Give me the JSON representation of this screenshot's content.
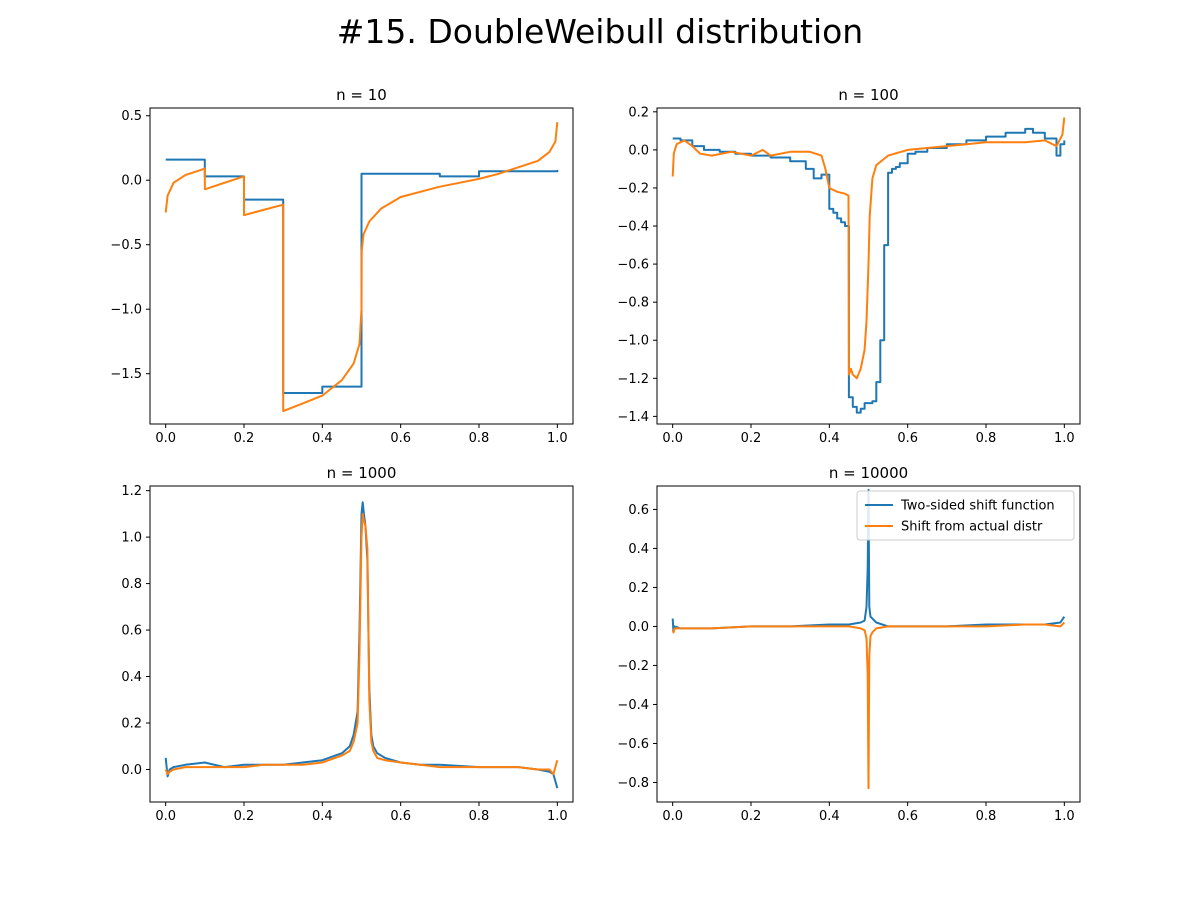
{
  "figure": {
    "title": "#15. DoubleWeibull distribution"
  },
  "colors": {
    "two_sided": "#1f77b4",
    "actual": "#ff7f0e",
    "axes": "#000000",
    "background": "#ffffff"
  },
  "legend": {
    "location": "upper right of fourth panel",
    "entries": [
      "Two-sided shift function",
      "Shift from actual distr"
    ]
  },
  "chart_data": [
    {
      "type": "line",
      "title": "n = 10",
      "xlim": [
        -0.04,
        1.04
      ],
      "ylim": [
        -1.89,
        0.56
      ],
      "xticks": [
        0.0,
        0.2,
        0.4,
        0.6,
        0.8,
        1.0
      ],
      "xtick_labels": [
        "0.0",
        "0.2",
        "0.4",
        "0.6",
        "0.8",
        "1.0"
      ],
      "yticks": [
        0.5,
        0.0,
        -0.5,
        -1.0,
        -1.5
      ],
      "ytick_labels": [
        "0.5",
        "0.0",
        "−0.5",
        "−1.0",
        "−1.5"
      ],
      "series": [
        {
          "name": "Two-sided shift function",
          "step": true,
          "x": [
            0.0,
            0.1,
            0.2,
            0.3,
            0.4,
            0.5,
            0.7,
            0.8,
            1.0
          ],
          "y": [
            0.16,
            0.03,
            -0.15,
            -1.65,
            -1.6,
            0.05,
            0.03,
            0.07,
            0.08
          ]
        },
        {
          "name": "Shift from actual distr",
          "step": false,
          "x": [
            0.0,
            0.005,
            0.02,
            0.05,
            0.09,
            0.1,
            0.1001,
            0.15,
            0.2,
            0.2001,
            0.25,
            0.3,
            0.3001,
            0.35,
            0.4,
            0.45,
            0.48,
            0.495,
            0.5,
            0.5005,
            0.505,
            0.52,
            0.55,
            0.6,
            0.65,
            0.7,
            0.75,
            0.8,
            0.85,
            0.9,
            0.95,
            0.98,
            0.995,
            1.0
          ],
          "y": [
            -0.25,
            -0.12,
            -0.02,
            0.04,
            0.08,
            0.09,
            -0.07,
            -0.02,
            0.03,
            -0.27,
            -0.23,
            -0.19,
            -1.79,
            -1.73,
            -1.67,
            -1.55,
            -1.42,
            -1.27,
            -1.0,
            -0.55,
            -0.42,
            -0.32,
            -0.22,
            -0.13,
            -0.09,
            -0.05,
            -0.02,
            0.01,
            0.05,
            0.1,
            0.15,
            0.22,
            0.3,
            0.45
          ]
        }
      ]
    },
    {
      "type": "line",
      "title": "n = 100",
      "xlim": [
        -0.04,
        1.04
      ],
      "ylim": [
        -1.44,
        0.22
      ],
      "xticks": [
        0.0,
        0.2,
        0.4,
        0.6,
        0.8,
        1.0
      ],
      "xtick_labels": [
        "0.0",
        "0.2",
        "0.4",
        "0.6",
        "0.8",
        "1.0"
      ],
      "yticks": [
        0.2,
        0.0,
        -0.2,
        -0.4,
        -0.6,
        -0.8,
        -1.0,
        -1.2,
        -1.4
      ],
      "ytick_labels": [
        "0.2",
        "0.0",
        "−0.2",
        "−0.4",
        "−0.6",
        "−0.8",
        "−1.0",
        "−1.2",
        "−1.4"
      ],
      "series": [
        {
          "name": "Two-sided shift function",
          "step": true,
          "x": [
            0.0,
            0.02,
            0.05,
            0.08,
            0.12,
            0.16,
            0.2,
            0.25,
            0.3,
            0.34,
            0.36,
            0.38,
            0.4,
            0.41,
            0.42,
            0.43,
            0.44,
            0.45,
            0.46,
            0.47,
            0.48,
            0.49,
            0.5,
            0.51,
            0.52,
            0.53,
            0.54,
            0.55,
            0.56,
            0.57,
            0.58,
            0.6,
            0.62,
            0.65,
            0.7,
            0.75,
            0.8,
            0.85,
            0.9,
            0.92,
            0.95,
            0.98,
            0.99,
            1.0
          ],
          "y": [
            0.06,
            0.05,
            0.02,
            0.0,
            -0.01,
            -0.02,
            -0.03,
            -0.04,
            -0.06,
            -0.1,
            -0.15,
            -0.13,
            -0.31,
            -0.33,
            -0.36,
            -0.38,
            -0.4,
            -1.3,
            -1.35,
            -1.38,
            -1.36,
            -1.33,
            -1.33,
            -1.32,
            -1.22,
            -1.0,
            -0.5,
            -0.12,
            -0.1,
            -0.09,
            -0.07,
            -0.02,
            -0.01,
            0.01,
            0.03,
            0.05,
            0.07,
            0.09,
            0.11,
            0.09,
            0.06,
            -0.03,
            0.03,
            0.05
          ]
        },
        {
          "name": "Shift from actual distr",
          "step": false,
          "x": [
            0.0,
            0.003,
            0.01,
            0.03,
            0.05,
            0.07,
            0.1,
            0.15,
            0.2,
            0.23,
            0.25,
            0.3,
            0.35,
            0.38,
            0.39,
            0.4,
            0.42,
            0.44,
            0.449,
            0.45,
            0.455,
            0.46,
            0.47,
            0.48,
            0.49,
            0.495,
            0.5,
            0.503,
            0.51,
            0.52,
            0.55,
            0.6,
            0.65,
            0.7,
            0.75,
            0.8,
            0.85,
            0.9,
            0.95,
            0.98,
            0.995,
            1.0
          ],
          "y": [
            -0.14,
            -0.02,
            0.03,
            0.05,
            0.02,
            -0.02,
            -0.03,
            -0.01,
            -0.03,
            0.0,
            -0.03,
            -0.01,
            -0.01,
            -0.03,
            -0.1,
            -0.2,
            -0.22,
            -0.23,
            -0.24,
            -1.18,
            -1.15,
            -1.18,
            -1.2,
            -1.15,
            -1.05,
            -0.9,
            -0.6,
            -0.35,
            -0.15,
            -0.08,
            -0.03,
            0.0,
            0.01,
            0.02,
            0.03,
            0.04,
            0.04,
            0.04,
            0.05,
            0.02,
            0.08,
            0.17
          ]
        }
      ]
    },
    {
      "type": "line",
      "title": "n = 1000",
      "xlim": [
        -0.04,
        1.04
      ],
      "ylim": [
        -0.14,
        1.22
      ],
      "xticks": [
        0.0,
        0.2,
        0.4,
        0.6,
        0.8,
        1.0
      ],
      "xtick_labels": [
        "0.0",
        "0.2",
        "0.4",
        "0.6",
        "0.8",
        "1.0"
      ],
      "yticks": [
        1.2,
        1.0,
        0.8,
        0.6,
        0.4,
        0.2,
        0.0
      ],
      "ytick_labels": [
        "1.2",
        "1.0",
        "0.8",
        "0.6",
        "0.4",
        "0.2",
        "0.0"
      ],
      "series": [
        {
          "name": "Two-sided shift function",
          "step": false,
          "x": [
            0.0,
            0.005,
            0.01,
            0.02,
            0.05,
            0.1,
            0.15,
            0.2,
            0.25,
            0.3,
            0.35,
            0.4,
            0.45,
            0.47,
            0.48,
            0.49,
            0.495,
            0.5,
            0.503,
            0.506,
            0.51,
            0.515,
            0.52,
            0.525,
            0.53,
            0.54,
            0.56,
            0.6,
            0.65,
            0.7,
            0.8,
            0.9,
            0.95,
            0.98,
            0.99,
            1.0
          ],
          "y": [
            0.05,
            -0.03,
            0.0,
            0.01,
            0.02,
            0.03,
            0.01,
            0.02,
            0.02,
            0.02,
            0.03,
            0.04,
            0.07,
            0.1,
            0.15,
            0.25,
            0.6,
            1.1,
            1.15,
            1.1,
            1.05,
            0.9,
            0.35,
            0.15,
            0.1,
            0.07,
            0.05,
            0.03,
            0.02,
            0.02,
            0.01,
            0.01,
            0.0,
            -0.01,
            -0.02,
            -0.08
          ]
        },
        {
          "name": "Shift from actual distr",
          "step": false,
          "x": [
            0.0,
            0.005,
            0.01,
            0.02,
            0.05,
            0.1,
            0.15,
            0.2,
            0.25,
            0.3,
            0.35,
            0.4,
            0.45,
            0.47,
            0.48,
            0.49,
            0.495,
            0.5,
            0.503,
            0.506,
            0.51,
            0.515,
            0.52,
            0.525,
            0.53,
            0.54,
            0.56,
            0.6,
            0.65,
            0.7,
            0.8,
            0.9,
            0.95,
            0.98,
            0.99,
            1.0
          ],
          "y": [
            0.0,
            -0.02,
            -0.01,
            0.0,
            0.01,
            0.01,
            0.01,
            0.01,
            0.02,
            0.02,
            0.02,
            0.03,
            0.06,
            0.08,
            0.12,
            0.2,
            0.5,
            1.0,
            1.1,
            1.07,
            1.05,
            0.95,
            0.3,
            0.12,
            0.08,
            0.05,
            0.04,
            0.03,
            0.02,
            0.01,
            0.01,
            0.01,
            0.0,
            0.0,
            -0.02,
            0.04
          ]
        }
      ]
    },
    {
      "type": "line",
      "title": "n = 10000",
      "xlim": [
        -0.04,
        1.04
      ],
      "ylim": [
        -0.9,
        0.72
      ],
      "xticks": [
        0.0,
        0.2,
        0.4,
        0.6,
        0.8,
        1.0
      ],
      "xtick_labels": [
        "0.0",
        "0.2",
        "0.4",
        "0.6",
        "0.8",
        "1.0"
      ],
      "yticks": [
        0.6,
        0.4,
        0.2,
        0.0,
        -0.2,
        -0.4,
        -0.6,
        -0.8
      ],
      "ytick_labels": [
        "0.6",
        "0.4",
        "0.2",
        "0.0",
        "−0.2",
        "−0.4",
        "−0.6",
        "−0.8"
      ],
      "series": [
        {
          "name": "Two-sided shift function",
          "step": false,
          "x": [
            0.0,
            0.002,
            0.005,
            0.02,
            0.1,
            0.2,
            0.3,
            0.4,
            0.45,
            0.48,
            0.49,
            0.495,
            0.498,
            0.5,
            0.502,
            0.505,
            0.51,
            0.52,
            0.55,
            0.6,
            0.7,
            0.8,
            0.9,
            0.95,
            0.99,
            1.0
          ],
          "y": [
            0.04,
            -0.03,
            0.0,
            -0.01,
            -0.01,
            0.0,
            0.0,
            0.01,
            0.01,
            0.02,
            0.03,
            0.1,
            0.3,
            0.7,
            0.1,
            0.05,
            0.04,
            0.02,
            0.0,
            0.0,
            0.0,
            0.01,
            0.01,
            0.01,
            0.02,
            0.05
          ]
        },
        {
          "name": "Shift from actual distr",
          "step": false,
          "x": [
            0.0,
            0.002,
            0.005,
            0.02,
            0.1,
            0.2,
            0.3,
            0.4,
            0.45,
            0.48,
            0.49,
            0.495,
            0.498,
            0.5,
            0.502,
            0.505,
            0.51,
            0.52,
            0.55,
            0.6,
            0.7,
            0.8,
            0.9,
            0.95,
            0.99,
            1.0
          ],
          "y": [
            -0.02,
            -0.03,
            -0.01,
            -0.01,
            -0.01,
            0.0,
            0.0,
            0.0,
            0.0,
            -0.01,
            -0.02,
            -0.06,
            -0.25,
            -0.83,
            -0.15,
            -0.05,
            -0.03,
            -0.01,
            0.0,
            0.0,
            0.0,
            0.0,
            0.01,
            0.01,
            0.0,
            0.02
          ]
        }
      ]
    }
  ]
}
